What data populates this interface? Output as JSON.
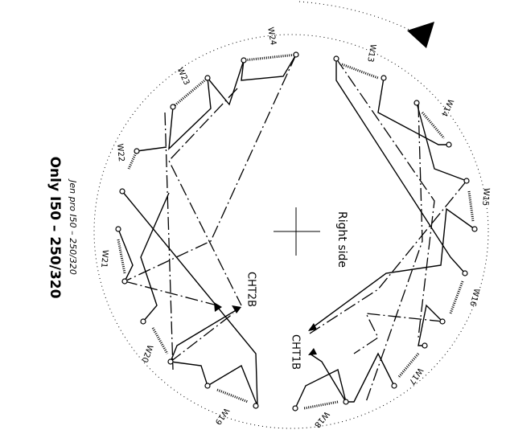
{
  "notes": {
    "title": "Only I50 – 250/320",
    "subtitle": "Jen pro I50 – 250/320"
  },
  "center_label": "Right side",
  "outputs": [
    {
      "label": "CHT2B"
    },
    {
      "label": "CHT1B"
    }
  ],
  "windings": [
    {
      "label": "W13"
    },
    {
      "label": "W14"
    },
    {
      "label": "W15"
    },
    {
      "label": "W16"
    },
    {
      "label": "W17"
    },
    {
      "label": "W18"
    },
    {
      "label": "W19"
    },
    {
      "label": "W20"
    },
    {
      "label": "W21"
    },
    {
      "label": "W22"
    },
    {
      "label": "W23"
    },
    {
      "label": "W24"
    }
  ]
}
